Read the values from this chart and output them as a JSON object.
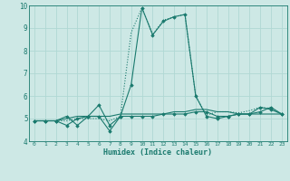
{
  "xlabel": "Humidex (Indice chaleur)",
  "x_values": [
    0,
    1,
    2,
    3,
    4,
    5,
    6,
    7,
    8,
    9,
    10,
    11,
    12,
    13,
    14,
    15,
    16,
    17,
    18,
    19,
    20,
    21,
    22,
    23
  ],
  "series": [
    {
      "y": [
        4.9,
        4.9,
        4.9,
        5.1,
        4.7,
        5.1,
        5.6,
        4.7,
        5.1,
        5.1,
        5.1,
        5.1,
        5.2,
        5.2,
        5.2,
        5.3,
        5.3,
        5.1,
        5.1,
        5.2,
        5.2,
        5.5,
        5.4,
        5.2
      ],
      "linestyle": "-",
      "linewidth": 0.8,
      "marker": true
    },
    {
      "y": [
        4.9,
        4.9,
        4.9,
        4.7,
        5.0,
        5.1,
        5.1,
        4.45,
        5.1,
        6.5,
        9.9,
        8.7,
        9.3,
        9.5,
        9.6,
        6.0,
        5.1,
        5.0,
        5.1,
        5.2,
        5.2,
        5.3,
        5.5,
        5.2
      ],
      "linestyle": "-",
      "linewidth": 0.8,
      "marker": true
    },
    {
      "y": [
        4.9,
        4.9,
        4.9,
        4.9,
        5.0,
        5.0,
        5.0,
        4.9,
        5.1,
        8.8,
        9.9,
        8.7,
        9.35,
        9.5,
        9.6,
        6.0,
        5.15,
        5.3,
        5.3,
        5.25,
        5.35,
        5.5,
        5.45,
        5.2
      ],
      "linestyle": "dotted",
      "linewidth": 0.8,
      "marker": false
    },
    {
      "y": [
        4.9,
        4.9,
        4.9,
        5.0,
        5.1,
        5.1,
        5.1,
        5.1,
        5.2,
        5.2,
        5.2,
        5.2,
        5.2,
        5.3,
        5.3,
        5.4,
        5.4,
        5.3,
        5.3,
        5.2,
        5.2,
        5.2,
        5.2,
        5.2
      ],
      "linestyle": "-",
      "linewidth": 0.8,
      "marker": false
    }
  ],
  "line_color": "#1a7a6e",
  "bg_color": "#cde8e5",
  "grid_color": "#b0d8d4",
  "ylim": [
    4.0,
    10.0
  ],
  "xlim": [
    -0.5,
    23.5
  ],
  "yticks": [
    4,
    5,
    6,
    7,
    8,
    9,
    10
  ],
  "xticks": [
    0,
    1,
    2,
    3,
    4,
    5,
    6,
    7,
    8,
    9,
    10,
    11,
    12,
    13,
    14,
    15,
    16,
    17,
    18,
    19,
    20,
    21,
    22,
    23
  ]
}
